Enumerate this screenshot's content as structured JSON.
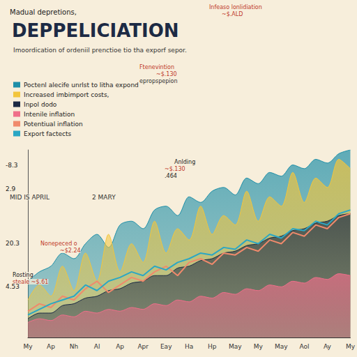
{
  "chart_data": {
    "type": "area",
    "title": "DEPPELICIATION",
    "subtitle": "Imoordication of ordeniil prenctioe tio tha exporf sepor.",
    "annotations": [
      {
        "text": "Madual depretions,"
      },
      {
        "text": "MID IS APRIL"
      },
      {
        "text": "2 MARY"
      },
      {
        "text": "Infeaso lonlidiation"
      },
      {
        "text": "~$.ALD"
      },
      {
        "text": "Ftenevintion"
      },
      {
        "text": "~$.130"
      },
      {
        "text": "epropspepion"
      },
      {
        "text": "Anlding"
      },
      {
        "text": "~$.130"
      },
      {
        "text": ".464"
      },
      {
        "text": "Nonepeced o"
      },
      {
        "text": "~$2.24"
      },
      {
        "text": "Rosting"
      },
      {
        "text": "steale ~$.61"
      },
      {
        "text": "-8.3"
      },
      {
        "text": "2.9"
      },
      {
        "text": "20.3"
      },
      {
        "text": "4.53"
      }
    ],
    "categories": [
      "My",
      null,
      "Ap",
      null,
      "Nh",
      null,
      "Al",
      null,
      "Ap",
      null,
      "Apr",
      null,
      "Eay",
      null,
      "Ha",
      null,
      "Hp",
      null,
      "May",
      null,
      "My",
      null,
      "May",
      null,
      "Aol",
      null,
      "Ay",
      null,
      "My"
    ],
    "series": [
      {
        "name": "Poctenl alecife unrlst to litha expond",
        "type": "area",
        "color": "#1f8fa8",
        "values": [
          30,
          35,
          38,
          45,
          42,
          50,
          55,
          48,
          60,
          62,
          58,
          68,
          70,
          65,
          75,
          72,
          78,
          80,
          76,
          85,
          82,
          88,
          86,
          92,
          90,
          95,
          93,
          98,
          100
        ]
      },
      {
        "name": "Increased imbimport costs,",
        "type": "area",
        "color": "#f2c53d",
        "values": [
          20,
          28,
          22,
          38,
          25,
          45,
          30,
          55,
          35,
          50,
          40,
          62,
          45,
          58,
          52,
          70,
          55,
          65,
          60,
          78,
          62,
          75,
          70,
          88,
          72,
          85,
          80,
          95,
          90
        ]
      },
      {
        "name": "Inpol dodo",
        "type": "area",
        "color": "#1c2a44",
        "values": [
          10,
          13,
          13,
          17,
          18,
          21,
          22,
          25,
          26,
          29,
          30,
          33,
          33,
          37,
          38,
          41,
          42,
          45,
          46,
          49,
          50,
          53,
          54,
          57,
          58,
          61,
          62,
          65,
          66
        ]
      },
      {
        "name": "Intenile inflation",
        "type": "area",
        "color": "#ef6f8a",
        "values": [
          8,
          10,
          9,
          12,
          11,
          14,
          13,
          15,
          14,
          16,
          15,
          18,
          17,
          20,
          19,
          22,
          21,
          24,
          23,
          26,
          25,
          28,
          27,
          30,
          29,
          32,
          31,
          34,
          33
        ]
      },
      {
        "name": "Potentiual inflation",
        "type": "line",
        "color": "#f08a6c",
        "values": [
          14,
          18,
          16,
          22,
          20,
          26,
          30,
          24,
          28,
          32,
          30,
          35,
          38,
          33,
          40,
          42,
          39,
          45,
          44,
          48,
          46,
          52,
          50,
          56,
          54,
          60,
          58,
          64,
          66
        ]
      },
      {
        "name": "Export factects",
        "type": "line",
        "color": "#2ba7c4",
        "values": [
          12,
          15,
          18,
          20,
          22,
          28,
          25,
          30,
          32,
          35,
          33,
          38,
          36,
          40,
          42,
          45,
          44,
          48,
          47,
          52,
          50,
          55,
          53,
          58,
          57,
          62,
          60,
          66,
          68
        ]
      }
    ],
    "ylim": [
      0,
      100
    ],
    "tick_labels": "x",
    "grid": false,
    "legend": "top-left",
    "marker": "none"
  }
}
